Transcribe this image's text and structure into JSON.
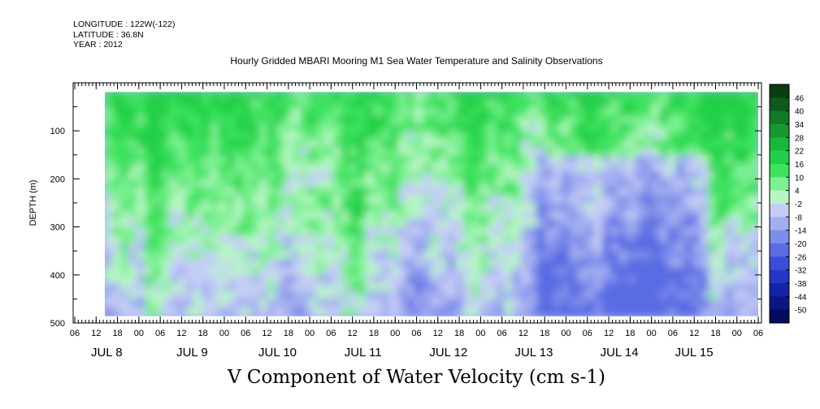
{
  "header": {
    "longitude": "LONGITUDE : 122W(-122)",
    "latitude": "LATITUDE : 36.8N",
    "year": "YEAR : 2012"
  },
  "title": "Hourly Gridded MBARI Mooring M1 Sea Water Temperature and Salinity Observations",
  "bottom_title": "V Component of Water Velocity (cm s-1)",
  "chart_data": {
    "type": "heatmap",
    "title": "Hourly Gridded MBARI Mooring M1 Sea Water Temperature and Salinity Observations",
    "colorbar_title": "V Component of Water Velocity (cm s-1)",
    "ylabel": "DEPTH (m)",
    "ylim": [
      500,
      0
    ],
    "y_ticks": [
      100,
      200,
      300,
      400,
      500
    ],
    "x_hour_ticks": [
      "06",
      "12",
      "18",
      "00",
      "06",
      "12",
      "18",
      "00",
      "06",
      "12",
      "18",
      "00",
      "06",
      "12",
      "18",
      "00",
      "06",
      "12",
      "18",
      "00",
      "06",
      "12",
      "18",
      "00",
      "06",
      "12",
      "18",
      "00",
      "06",
      "12",
      "18",
      "00",
      "06"
    ],
    "x_day_labels": [
      "JUL 8",
      "JUL 9",
      "JUL 10",
      "JUL 11",
      "JUL 12",
      "JUL 13",
      "JUL 14",
      "JUL 15"
    ],
    "colorbar_levels": [
      46,
      40,
      34,
      28,
      22,
      16,
      10,
      4,
      -2,
      -8,
      -14,
      -20,
      -26,
      -32,
      -38,
      -44,
      -50
    ],
    "colorbar_colors": [
      "#0a3d12",
      "#0e5a1c",
      "#127a26",
      "#169830",
      "#18b83a",
      "#22d047",
      "#3ee25e",
      "#7cf092",
      "#b6f5c4",
      "#c4cdf5",
      "#a3aef0",
      "#7f8dea",
      "#5a6ce3",
      "#3a4edb",
      "#2536c8",
      "#1424a8",
      "#0a1683",
      "#050c5e"
    ],
    "region_summary": "Green (positive V, 4 to 22) dominates upper depths (~20-200 m) across the period; blue/lavender (negative V, -2 to -20) dominates deeper layers and broad region JUL 13-14 at 150-450 m.",
    "data_depth_range": [
      20,
      485
    ]
  }
}
